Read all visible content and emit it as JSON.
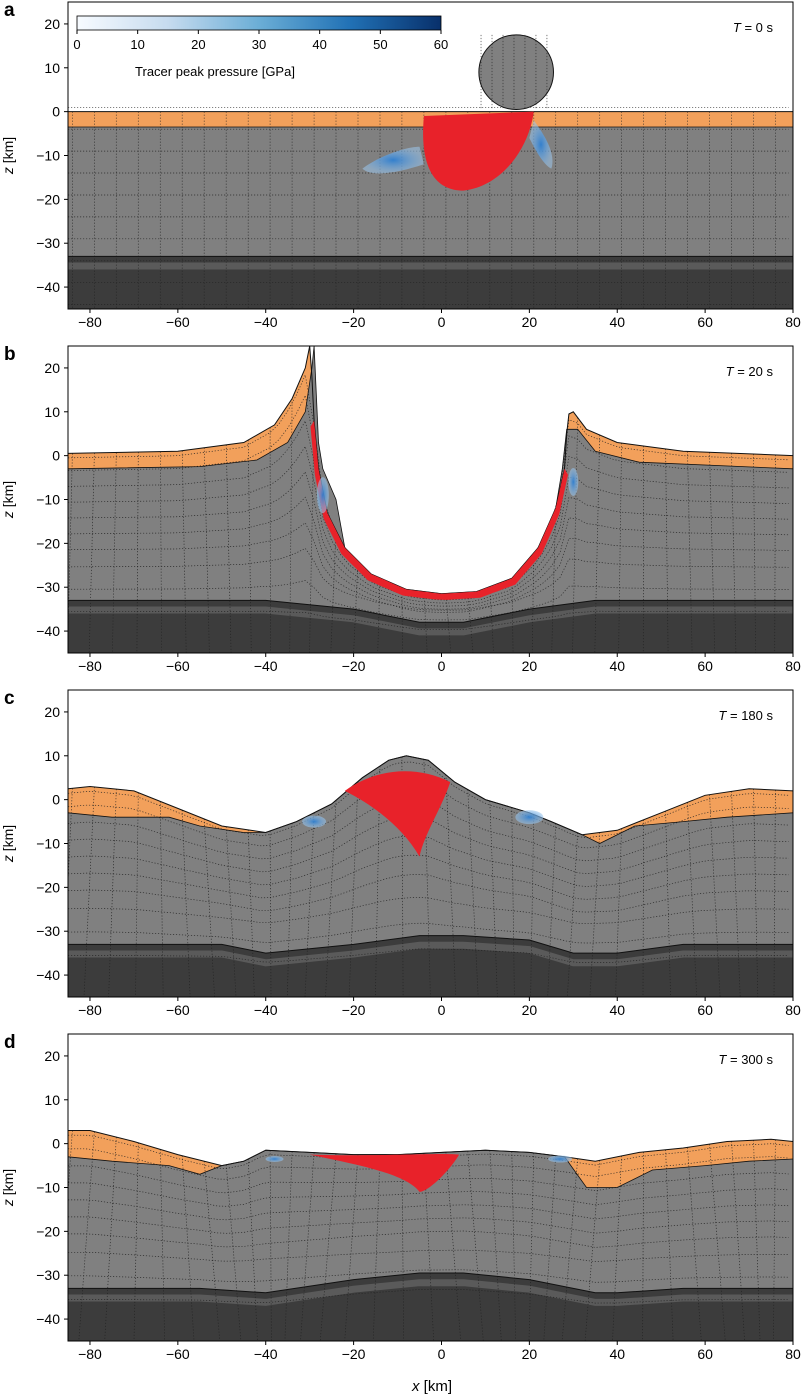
{
  "figure": {
    "xlabel_var": "x",
    "xlabel_unit": " [km]"
  },
  "colorbar": {
    "label": "Tracer peak pressure [GPa]",
    "ticks": [
      "0",
      "10",
      "20",
      "30",
      "40",
      "50",
      "60"
    ],
    "min": 0,
    "max": 60,
    "color_low": "#f7fbff",
    "color_high": "#08306b"
  },
  "colors": {
    "sediment": "#f2a05b",
    "crust": "#808080",
    "mantle": "#3c3c3c",
    "tracer_red": "#e8222a",
    "tracer_blue": "#4a8fd0"
  },
  "chart_data": [
    {
      "type": "area",
      "panel_letter": "a",
      "time_label_var": "T",
      "time_label_rest": " = 0 s",
      "ylabel_var": "z",
      "ylabel_unit": " [km]",
      "xlim": [
        -85,
        80
      ],
      "ylim": [
        -45,
        25
      ],
      "xticks": [
        "−80",
        "−60",
        "−40",
        "−20",
        "0",
        "20",
        "40",
        "60",
        "80"
      ],
      "xtick_values": [
        -80,
        -60,
        -40,
        -20,
        0,
        20,
        40,
        60,
        80
      ],
      "yticks": [
        "20",
        "10",
        "0",
        "−10",
        "−20",
        "−30",
        "−40"
      ],
      "ytick_values": [
        20,
        10,
        0,
        -10,
        -20,
        -30,
        -40
      ],
      "surface": [
        [
          -85,
          0
        ],
        [
          80,
          0
        ]
      ],
      "sediment_base": [
        [
          -85,
          -3.5
        ],
        [
          80,
          -3.5
        ]
      ],
      "moho": [
        [
          -85,
          -33
        ],
        [
          80,
          -33
        ]
      ],
      "projectile": {
        "x": 17,
        "z": 9,
        "radius": 8.5
      }
    },
    {
      "type": "area",
      "panel_letter": "b",
      "time_label_var": "T",
      "time_label_rest": " = 20 s",
      "ylabel_var": "z",
      "ylabel_unit": " [km]",
      "xlim": [
        -85,
        80
      ],
      "ylim": [
        -45,
        25
      ],
      "xticks": [
        "−80",
        "−60",
        "−40",
        "−20",
        "0",
        "20",
        "40",
        "60",
        "80"
      ],
      "xtick_values": [
        -80,
        -60,
        -40,
        -20,
        0,
        20,
        40,
        60,
        80
      ],
      "yticks": [
        "20",
        "10",
        "0",
        "−10",
        "−20",
        "−30",
        "−40"
      ],
      "ytick_values": [
        20,
        10,
        0,
        -10,
        -20,
        -30,
        -40
      ],
      "surface": [
        [
          -85,
          0.5
        ],
        [
          -60,
          1
        ],
        [
          -45,
          3
        ],
        [
          -38,
          7
        ],
        [
          -34,
          13
        ],
        [
          -31,
          20
        ],
        [
          -30,
          25
        ],
        [
          -29.5,
          18
        ],
        [
          -29,
          8
        ],
        [
          -28,
          -3
        ],
        [
          -26,
          -13
        ],
        [
          -22,
          -21
        ],
        [
          -16,
          -27
        ],
        [
          -8,
          -30.5
        ],
        [
          0,
          -31.5
        ],
        [
          8,
          -31
        ],
        [
          16,
          -28
        ],
        [
          22,
          -21
        ],
        [
          26,
          -12
        ],
        [
          28,
          -3
        ],
        [
          28.5,
          5
        ],
        [
          29,
          9.5
        ],
        [
          30,
          10
        ],
        [
          33,
          6
        ],
        [
          40,
          3
        ],
        [
          55,
          1
        ],
        [
          80,
          0
        ]
      ],
      "sediment_base": [
        [
          -85,
          -3
        ],
        [
          -55,
          -2.5
        ],
        [
          -42,
          -1
        ],
        [
          -35,
          3
        ],
        [
          -31,
          10
        ],
        [
          -29.5,
          20
        ],
        [
          -29,
          25
        ],
        [
          -28,
          3
        ],
        [
          -27,
          -3
        ],
        [
          -24,
          -10
        ],
        [
          -22,
          -21
        ],
        [
          -16,
          -27
        ],
        [
          -8,
          -30.5
        ],
        [
          0,
          -31.5
        ],
        [
          8,
          -31
        ],
        [
          16,
          -28
        ],
        [
          22,
          -21
        ],
        [
          26,
          -12
        ],
        [
          27.5,
          -3
        ],
        [
          28.5,
          6
        ],
        [
          31,
          6
        ],
        [
          35,
          1
        ],
        [
          45,
          -1.5
        ],
        [
          80,
          -3
        ]
      ],
      "moho": [
        [
          -85,
          -33
        ],
        [
          -40,
          -33
        ],
        [
          -20,
          -35
        ],
        [
          -5,
          -38
        ],
        [
          5,
          -38
        ],
        [
          20,
          -35
        ],
        [
          35,
          -33
        ],
        [
          80,
          -33
        ]
      ]
    },
    {
      "type": "area",
      "panel_letter": "c",
      "time_label_var": "T",
      "time_label_rest": " = 180 s",
      "ylabel_var": "z",
      "ylabel_unit": " [km]",
      "xlim": [
        -85,
        80
      ],
      "ylim": [
        -45,
        25
      ],
      "xticks": [
        "−80",
        "−60",
        "−40",
        "−20",
        "0",
        "20",
        "40",
        "60",
        "80"
      ],
      "xtick_values": [
        -80,
        -60,
        -40,
        -20,
        0,
        20,
        40,
        60,
        80
      ],
      "yticks": [
        "20",
        "10",
        "0",
        "−10",
        "−20",
        "−30",
        "−40"
      ],
      "ytick_values": [
        20,
        10,
        0,
        -10,
        -20,
        -30,
        -40
      ],
      "surface": [
        [
          -85,
          2.5
        ],
        [
          -80,
          3
        ],
        [
          -70,
          2
        ],
        [
          -60,
          -2
        ],
        [
          -50,
          -6
        ],
        [
          -40,
          -7.5
        ],
        [
          -33,
          -5
        ],
        [
          -25,
          -1
        ],
        [
          -18,
          5
        ],
        [
          -12,
          9
        ],
        [
          -8,
          10
        ],
        [
          -3,
          9
        ],
        [
          3,
          4
        ],
        [
          10,
          0
        ],
        [
          20,
          -3
        ],
        [
          25,
          -5
        ],
        [
          32,
          -8
        ],
        [
          40,
          -7
        ],
        [
          50,
          -3
        ],
        [
          60,
          1
        ],
        [
          70,
          2.5
        ],
        [
          80,
          2
        ]
      ],
      "sediment_base": [
        [
          -85,
          -3
        ],
        [
          -75,
          -4
        ],
        [
          -62,
          -4
        ],
        [
          -55,
          -6
        ],
        [
          -45,
          -7.5
        ],
        [
          -40,
          -7.5
        ],
        [
          -33,
          -5
        ],
        [
          -25,
          -1
        ],
        [
          -18,
          5
        ],
        [
          -12,
          9
        ],
        [
          -8,
          10
        ],
        [
          -3,
          9
        ],
        [
          3,
          4
        ],
        [
          10,
          0
        ],
        [
          20,
          -3
        ],
        [
          25,
          -5
        ],
        [
          32,
          -8
        ],
        [
          36,
          -10
        ],
        [
          44,
          -6
        ],
        [
          55,
          -5
        ],
        [
          65,
          -4
        ],
        [
          80,
          -3
        ]
      ],
      "moho": [
        [
          -85,
          -33
        ],
        [
          -50,
          -33
        ],
        [
          -40,
          -35
        ],
        [
          -20,
          -33
        ],
        [
          -5,
          -31
        ],
        [
          5,
          -31
        ],
        [
          20,
          -32
        ],
        [
          30,
          -35
        ],
        [
          40,
          -35
        ],
        [
          55,
          -33
        ],
        [
          80,
          -33
        ]
      ]
    },
    {
      "type": "area",
      "panel_letter": "d",
      "time_label_var": "T",
      "time_label_rest": " = 300 s",
      "ylabel_var": "z",
      "ylabel_unit": " [km]",
      "xlim": [
        -85,
        80
      ],
      "ylim": [
        -45,
        25
      ],
      "xticks": [
        "−80",
        "−60",
        "−40",
        "−20",
        "0",
        "20",
        "40",
        "60",
        "80"
      ],
      "xtick_values": [
        -80,
        -60,
        -40,
        -20,
        0,
        20,
        40,
        60,
        80
      ],
      "yticks": [
        "20",
        "10",
        "0",
        "−10",
        "−20",
        "−30",
        "−40"
      ],
      "ytick_values": [
        20,
        10,
        0,
        -10,
        -20,
        -30,
        -40
      ],
      "surface": [
        [
          -85,
          3
        ],
        [
          -80,
          3
        ],
        [
          -70,
          0.5
        ],
        [
          -60,
          -2.5
        ],
        [
          -50,
          -5
        ],
        [
          -45,
          -4
        ],
        [
          -40,
          -1.5
        ],
        [
          -30,
          -2
        ],
        [
          -20,
          -2.5
        ],
        [
          -10,
          -2.5
        ],
        [
          0,
          -2
        ],
        [
          10,
          -1.5
        ],
        [
          20,
          -2
        ],
        [
          28,
          -3
        ],
        [
          35,
          -4
        ],
        [
          45,
          -2
        ],
        [
          55,
          -1
        ],
        [
          65,
          0.5
        ],
        [
          75,
          1
        ],
        [
          80,
          0.5
        ]
      ],
      "sediment_base": [
        [
          -85,
          -3
        ],
        [
          -75,
          -4
        ],
        [
          -62,
          -5
        ],
        [
          -55,
          -7
        ],
        [
          -50,
          -5
        ],
        [
          -45,
          -4
        ],
        [
          -40,
          -1.5
        ],
        [
          -30,
          -2
        ],
        [
          -20,
          -2.5
        ],
        [
          -10,
          -2.5
        ],
        [
          0,
          -2
        ],
        [
          10,
          -1.5
        ],
        [
          20,
          -2
        ],
        [
          28,
          -3
        ],
        [
          33,
          -10
        ],
        [
          40,
          -10
        ],
        [
          48,
          -6
        ],
        [
          60,
          -5
        ],
        [
          70,
          -4
        ],
        [
          80,
          -3.5
        ]
      ],
      "moho": [
        [
          -85,
          -33
        ],
        [
          -55,
          -33
        ],
        [
          -40,
          -34
        ],
        [
          -20,
          -31
        ],
        [
          -5,
          -29.5
        ],
        [
          5,
          -29.5
        ],
        [
          20,
          -31
        ],
        [
          35,
          -34
        ],
        [
          40,
          -34
        ],
        [
          55,
          -33
        ],
        [
          80,
          -33
        ]
      ]
    }
  ]
}
